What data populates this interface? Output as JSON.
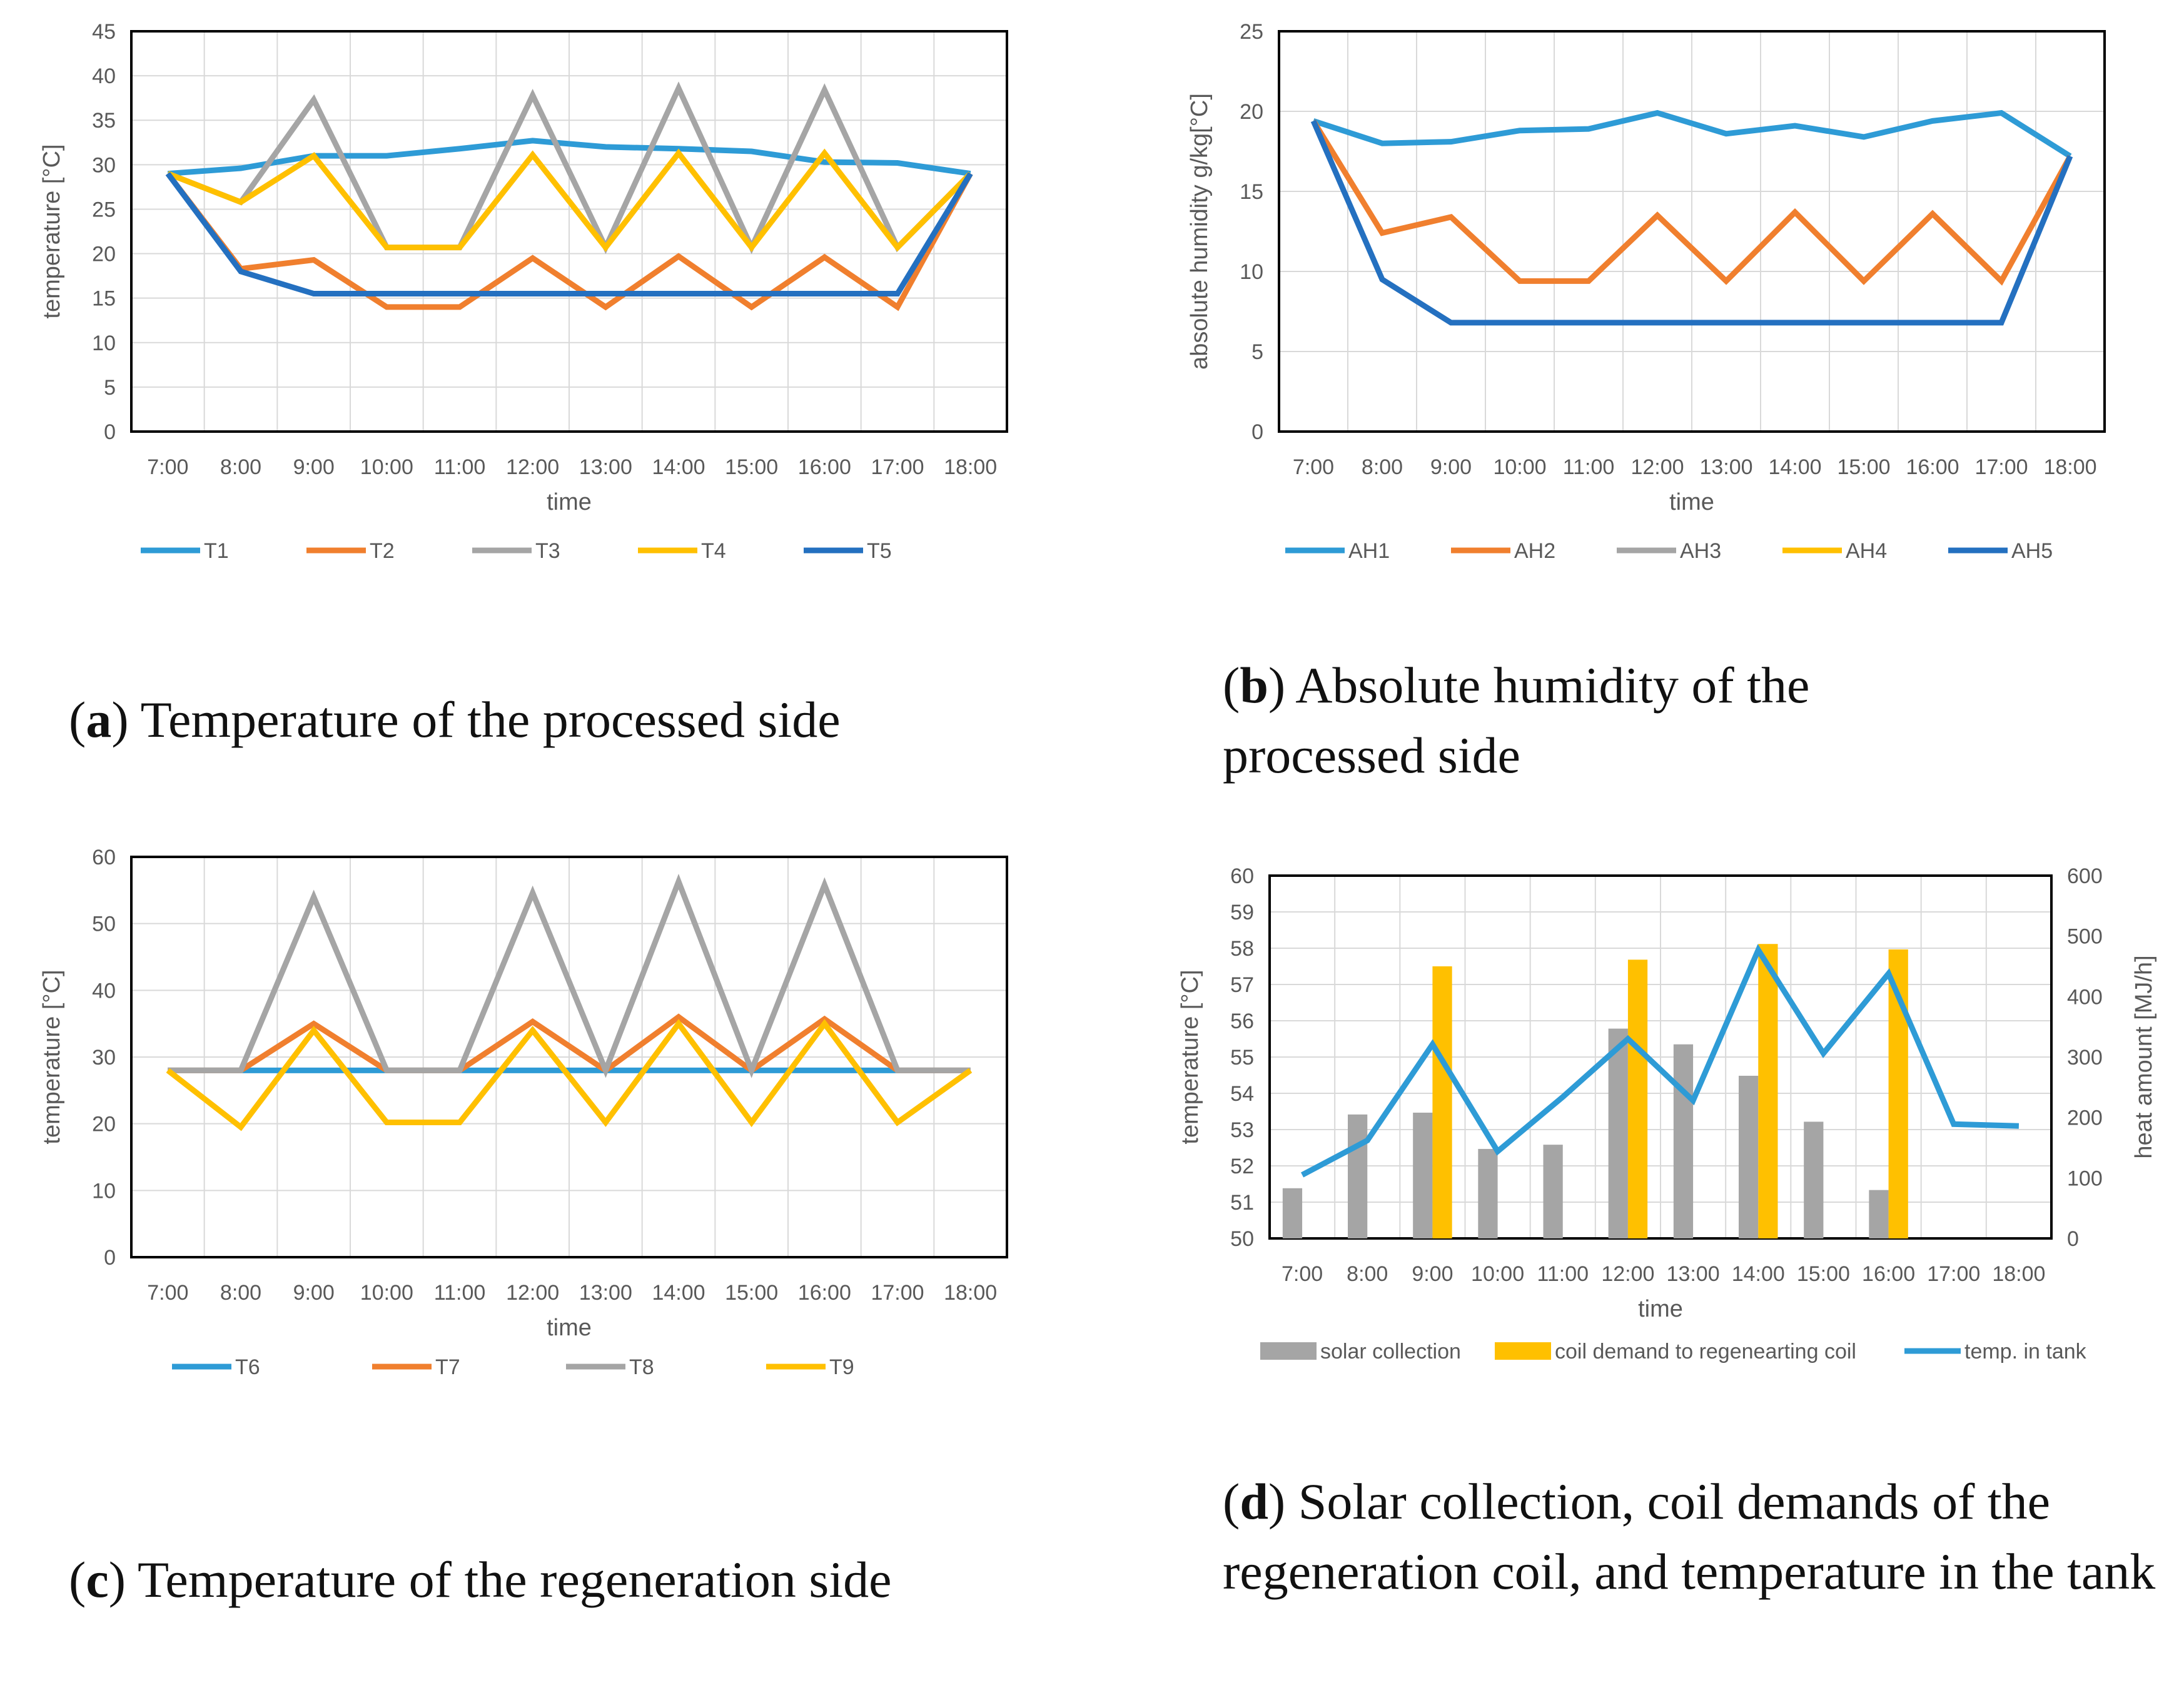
{
  "captions": {
    "a": {
      "letter": "a",
      "text": ") Temperature of the processed side"
    },
    "b": {
      "letter": "b",
      "text": ") Absolute humidity of the processed side"
    },
    "c": {
      "letter": "c",
      "text": ") Temperature of the regeneration side"
    },
    "d": {
      "letter": "d",
      "text": ") Solar collection, coil demands of the regeneration coil, and temperature in the tank"
    }
  },
  "chart_data": [
    {
      "id": "a",
      "type": "line",
      "xlabel": "time",
      "ylabel": "temperature [°C]",
      "ylim": [
        0,
        45
      ],
      "yticks": [
        0,
        5,
        10,
        15,
        20,
        25,
        30,
        35,
        40,
        45
      ],
      "grid": true,
      "legend_position": "bottom",
      "categories": [
        "7:00",
        "8:00",
        "9:00",
        "10:00",
        "11:00",
        "12:00",
        "13:00",
        "14:00",
        "15:00",
        "16:00",
        "17:00",
        "18:00"
      ],
      "series": [
        {
          "name": "T1",
          "color": "#2e9bd6",
          "values": [
            29,
            29.6,
            31,
            31,
            31.8,
            32.7,
            32,
            31.8,
            31.5,
            30.3,
            30.2,
            29
          ]
        },
        {
          "name": "T2",
          "color": "#f07f2e",
          "values": [
            29,
            18.3,
            19.3,
            14,
            14,
            19.5,
            14,
            19.7,
            14,
            19.6,
            14,
            29
          ]
        },
        {
          "name": "T3",
          "color": "#a5a5a5",
          "values": [
            29,
            25.8,
            37.3,
            20.7,
            20.7,
            37.8,
            20.7,
            38.6,
            20.7,
            38.4,
            20.7,
            29
          ]
        },
        {
          "name": "T4",
          "color": "#ffc000",
          "values": [
            29,
            25.8,
            31,
            20.7,
            20.7,
            31.1,
            20.7,
            31.3,
            20.7,
            31.3,
            20.7,
            29
          ]
        },
        {
          "name": "T5",
          "color": "#2470c0",
          "values": [
            29,
            18,
            15.5,
            15.5,
            15.5,
            15.5,
            15.5,
            15.5,
            15.5,
            15.5,
            15.5,
            29
          ]
        }
      ]
    },
    {
      "id": "b",
      "type": "line",
      "xlabel": "time",
      "ylabel": "absolute humidity g/kg[°C]",
      "ylim": [
        0,
        25
      ],
      "yticks": [
        0,
        5,
        10,
        15,
        20,
        25
      ],
      "grid": true,
      "legend_position": "bottom",
      "categories": [
        "7:00",
        "8:00",
        "9:00",
        "10:00",
        "11:00",
        "12:00",
        "13:00",
        "14:00",
        "15:00",
        "16:00",
        "17:00",
        "18:00"
      ],
      "series": [
        {
          "name": "AH1",
          "color": "#2e9bd6",
          "values": [
            19.4,
            18,
            18.1,
            18.8,
            18.9,
            19.9,
            18.6,
            19.1,
            18.4,
            19.4,
            19.9,
            17.2
          ]
        },
        {
          "name": "AH2",
          "color": "#f07f2e",
          "values": [
            19.4,
            12.4,
            13.4,
            9.4,
            9.4,
            13.5,
            9.4,
            13.7,
            9.4,
            13.6,
            9.4,
            17.2
          ]
        },
        {
          "name": "AH3",
          "color": "#a5a5a5",
          "values": [
            null,
            null,
            null,
            null,
            null,
            null,
            null,
            null,
            null,
            null,
            null,
            null
          ]
        },
        {
          "name": "AH4",
          "color": "#ffc000",
          "values": [
            null,
            null,
            null,
            null,
            null,
            null,
            null,
            null,
            null,
            null,
            null,
            null
          ]
        },
        {
          "name": "AH5",
          "color": "#2470c0",
          "values": [
            19.4,
            9.5,
            6.8,
            6.8,
            6.8,
            6.8,
            6.8,
            6.8,
            6.8,
            6.8,
            6.8,
            17.2
          ]
        }
      ]
    },
    {
      "id": "c",
      "type": "line",
      "xlabel": "time",
      "ylabel": "temperature [°C]",
      "ylim": [
        0,
        60
      ],
      "yticks": [
        0,
        10,
        20,
        30,
        40,
        50,
        60
      ],
      "grid": true,
      "legend_position": "bottom",
      "categories": [
        "7:00",
        "8:00",
        "9:00",
        "10:00",
        "11:00",
        "12:00",
        "13:00",
        "14:00",
        "15:00",
        "16:00",
        "17:00",
        "18:00"
      ],
      "series": [
        {
          "name": "T6",
          "color": "#2e9bd6",
          "values": [
            28,
            28,
            28,
            28,
            28,
            28,
            28,
            28,
            28,
            28,
            28,
            28
          ]
        },
        {
          "name": "T7",
          "color": "#f07f2e",
          "values": [
            28,
            28,
            35,
            28,
            28,
            35.3,
            28,
            36,
            28,
            35.7,
            28,
            28
          ]
        },
        {
          "name": "T8",
          "color": "#a5a5a5",
          "values": [
            28,
            28,
            54,
            28,
            28,
            54.6,
            28,
            56.3,
            28,
            55.8,
            28,
            28
          ]
        },
        {
          "name": "T9",
          "color": "#ffc000",
          "values": [
            28,
            19.5,
            34,
            20.2,
            20.2,
            34,
            20.2,
            35,
            20.2,
            35,
            20.2,
            28
          ]
        }
      ]
    },
    {
      "id": "d",
      "type": "bar",
      "xlabel": "time",
      "ylabel": "temperature [°C]",
      "y2label": "heat amount [MJ/h]",
      "ylim": [
        50,
        60
      ],
      "yticks": [
        50,
        51,
        52,
        53,
        54,
        55,
        56,
        57,
        58,
        59,
        60
      ],
      "y2lim": [
        0,
        600
      ],
      "y2ticks": [
        0,
        100,
        200,
        300,
        400,
        500,
        600
      ],
      "grid": true,
      "legend_position": "bottom",
      "categories": [
        "7:00",
        "8:00",
        "9:00",
        "10:00",
        "11:00",
        "12:00",
        "13:00",
        "14:00",
        "15:00",
        "16:00",
        "17:00",
        "18:00"
      ],
      "series": [
        {
          "name": "solar collection",
          "kind": "bar",
          "axis": "right",
          "color": "#a5a5a5",
          "values": [
            83,
            205,
            208,
            148,
            155,
            347,
            321,
            269,
            193,
            80,
            null,
            null
          ]
        },
        {
          "name": "coil demand to regenearting coil",
          "kind": "bar",
          "axis": "right",
          "color": "#ffc000",
          "values": [
            null,
            null,
            450,
            null,
            null,
            461,
            null,
            487,
            null,
            478,
            null,
            null
          ]
        },
        {
          "name": "temp. in tank",
          "kind": "line",
          "axis": "left",
          "color": "#2e9bd6",
          "values": [
            51.75,
            52.7,
            55.35,
            52.4,
            53.9,
            55.5,
            53.8,
            57.95,
            55.1,
            57.3,
            53.15,
            53.1
          ]
        }
      ]
    }
  ]
}
